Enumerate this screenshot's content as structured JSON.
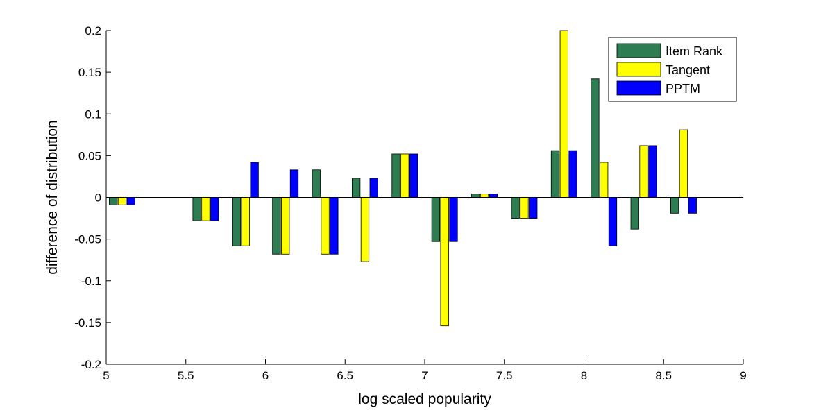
{
  "chart_data": {
    "type": "bar",
    "title": "",
    "xlabel": "log scaled popularity",
    "ylabel": "difference of distribution",
    "xlim": [
      5,
      9
    ],
    "ylim": [
      -0.2,
      0.2
    ],
    "xticks": [
      5,
      5.5,
      6,
      6.5,
      7,
      7.5,
      8,
      8.5,
      9
    ],
    "xtick_labels": [
      "5",
      "5.5",
      "6",
      "6.5",
      "7",
      "7.5",
      "8",
      "8.5",
      "9"
    ],
    "yticks": [
      -0.2,
      -0.15,
      -0.1,
      -0.05,
      0,
      0.05,
      0.1,
      0.15,
      0.2
    ],
    "ytick_labels": [
      "-0.2",
      "-0.15",
      "-0.1",
      "-0.05",
      "0",
      "0.05",
      "0.1",
      "0.15",
      "0.2"
    ],
    "grid": false,
    "legend_position": "top-right",
    "x": [
      5.1,
      5.625,
      5.875,
      6.125,
      6.375,
      6.625,
      6.875,
      7.125,
      7.375,
      7.625,
      7.875,
      8.125,
      8.375,
      8.625
    ],
    "series": [
      {
        "name": "Item Rank",
        "color": "#2e7d52",
        "values": [
          -0.009,
          -0.028,
          -0.058,
          -0.068,
          0.033,
          0.023,
          0.052,
          -0.053,
          0.004,
          -0.025,
          0.056,
          0.142,
          -0.038,
          -0.019
        ]
      },
      {
        "name": "Tangent",
        "color": "#ffff00",
        "values": [
          -0.009,
          -0.028,
          -0.058,
          -0.068,
          -0.068,
          -0.077,
          0.052,
          -0.154,
          0.004,
          -0.025,
          0.2,
          0.042,
          0.062,
          0.081
        ]
      },
      {
        "name": "PPTM",
        "color": "#0000ff",
        "values": [
          -0.009,
          -0.028,
          0.042,
          0.033,
          -0.068,
          0.023,
          0.052,
          -0.053,
          0.004,
          -0.025,
          0.056,
          -0.058,
          0.062,
          -0.019
        ]
      }
    ]
  }
}
